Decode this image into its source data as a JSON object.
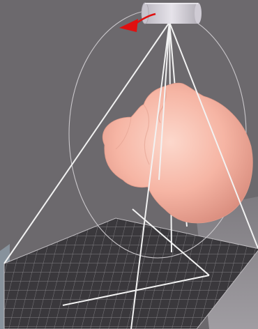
{
  "scene": {
    "background_color": "#6c696d",
    "floor_color": "#3a383c",
    "floor_grid_color": "#9a979b",
    "side_wall_color": "#8f8c90",
    "beam_line_color": "#f2f2f2",
    "orbit_path_color": "#c9c6ca",
    "source_color": "#d9d6de",
    "object_color": "#f7b7a7",
    "arrow_color": "#e01010"
  },
  "icons": {
    "rotation_direction": "curved-arrow-icon",
    "source": "cylinder-source-icon",
    "object": "head-model-icon"
  }
}
